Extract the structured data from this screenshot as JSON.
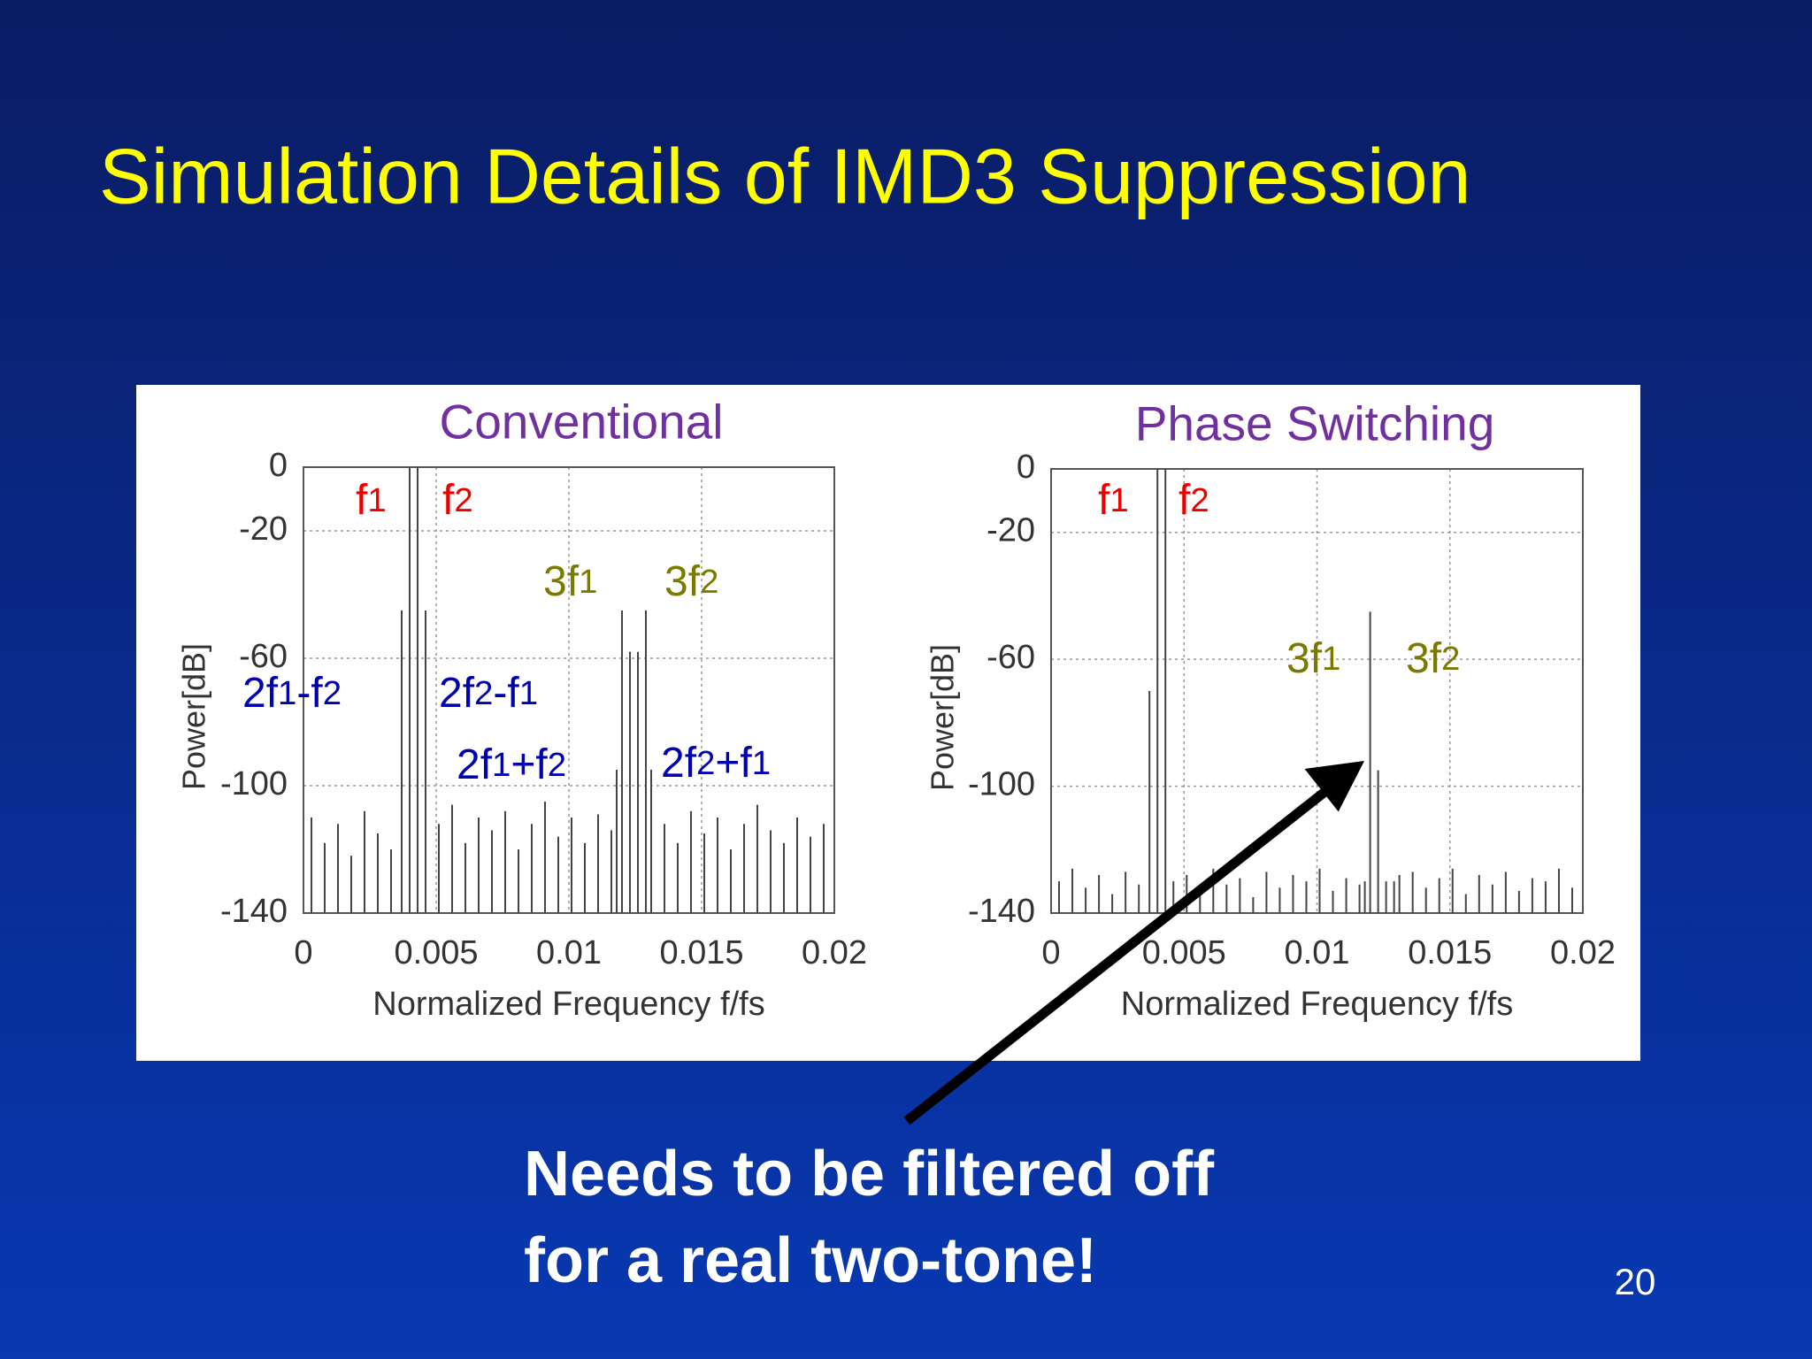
{
  "title": "Simulation Details of IMD3 Suppression",
  "chart_data": [
    {
      "type": "stem",
      "title": "Conventional",
      "x_label": "Normalized Frequency f/fs",
      "y_label": "Power[dB]",
      "x": [
        0.0003,
        0.0008,
        0.0013,
        0.0018,
        0.0023,
        0.0028,
        0.0033,
        0.0037,
        0.004,
        0.0043,
        0.0046,
        0.0051,
        0.0056,
        0.0061,
        0.0066,
        0.0071,
        0.0076,
        0.0081,
        0.0086,
        0.0091,
        0.0096,
        0.0101,
        0.0106,
        0.0111,
        0.0116,
        0.0118,
        0.012,
        0.0123,
        0.0126,
        0.0129,
        0.0131,
        0.0136,
        0.0141,
        0.0146,
        0.0151,
        0.0156,
        0.0161,
        0.0166,
        0.0171,
        0.0176,
        0.0181,
        0.0186,
        0.0191,
        0.0196
      ],
      "values": [
        -110,
        -118,
        -112,
        -122,
        -108,
        -115,
        -120,
        -45,
        0,
        0,
        -45,
        -112,
        -106,
        -118,
        -110,
        -114,
        -108,
        -120,
        -112,
        -105,
        -116,
        -110,
        -118,
        -109,
        -114,
        -95,
        -45,
        -58,
        -58,
        -45,
        -95,
        -112,
        -118,
        -108,
        -115,
        -110,
        -120,
        -112,
        -106,
        -114,
        -118,
        -110,
        -116,
        -112
      ],
      "color": "#444444",
      "xlim": [
        0,
        0.02
      ],
      "xticks": [
        0,
        0.005,
        0.01,
        0.015,
        0.02
      ],
      "ylim": [
        -140,
        0
      ],
      "yticks": [
        0,
        -20,
        -60,
        -100,
        -140
      ],
      "grid": true,
      "annotations": [
        {
          "text": "f1",
          "color": "#ee0000"
        },
        {
          "text": "f2",
          "color": "#ee0000"
        },
        {
          "text": "3f1",
          "color": "#7a7a00"
        },
        {
          "text": "3f2",
          "color": "#7a7a00"
        },
        {
          "text": "2f1-f2",
          "color": "#0000b0"
        },
        {
          "text": "2f2-f1",
          "color": "#0000b0"
        },
        {
          "text": "2f1+f2",
          "color": "#0000b0"
        },
        {
          "text": "2f2+f1",
          "color": "#0000b0"
        }
      ]
    },
    {
      "type": "stem",
      "title": "Phase Switching",
      "x_label": "Normalized Frequency f/fs",
      "y_label": "Power[dB]",
      "x": [
        0.0003,
        0.0008,
        0.0013,
        0.0018,
        0.0023,
        0.0028,
        0.0033,
        0.0037,
        0.004,
        0.0043,
        0.0046,
        0.0051,
        0.0056,
        0.0061,
        0.0066,
        0.0071,
        0.0076,
        0.0081,
        0.0086,
        0.0091,
        0.0096,
        0.0101,
        0.0106,
        0.0111,
        0.0116,
        0.0118,
        0.012,
        0.0123,
        0.0126,
        0.0129,
        0.0131,
        0.0136,
        0.0141,
        0.0146,
        0.0151,
        0.0156,
        0.0161,
        0.0166,
        0.0171,
        0.0176,
        0.0181,
        0.0186,
        0.0191,
        0.0196
      ],
      "values": [
        -130,
        -126,
        -132,
        -128,
        -134,
        -127,
        -131,
        -70,
        0,
        0,
        -130,
        -128,
        -133,
        -126,
        -131,
        -129,
        -135,
        -127,
        -132,
        -128,
        -130,
        -126,
        -133,
        -129,
        -131,
        -130,
        -45,
        -95,
        -130,
        -130,
        -128,
        -127,
        -132,
        -129,
        -126,
        -134,
        -128,
        -131,
        -127,
        -133,
        -129,
        -130,
        -126,
        -132
      ],
      "color": "#444444",
      "xlim": [
        0,
        0.02
      ],
      "xticks": [
        0,
        0.005,
        0.01,
        0.015,
        0.02
      ],
      "ylim": [
        -140,
        0
      ],
      "yticks": [
        0,
        -20,
        -60,
        -100,
        -140
      ],
      "grid": true,
      "annotations": [
        {
          "text": "f1",
          "color": "#ee0000"
        },
        {
          "text": "f2",
          "color": "#ee0000"
        },
        {
          "text": "3f1",
          "color": "#7a7a00"
        },
        {
          "text": "3f2",
          "color": "#7a7a00"
        }
      ]
    }
  ],
  "note": [
    "Needs to be filtered off",
    "for a real two-tone!"
  ],
  "page_number": "20"
}
